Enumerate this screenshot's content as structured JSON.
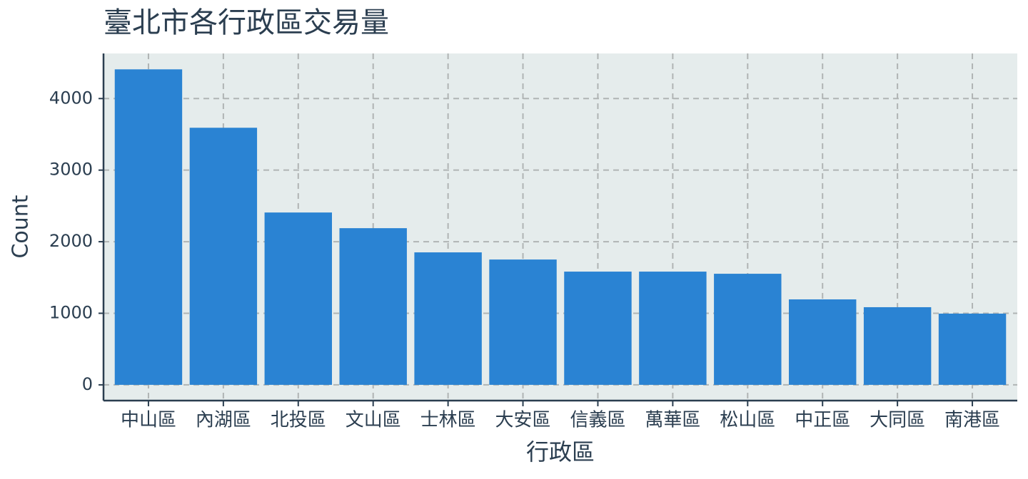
{
  "chart_data": {
    "type": "bar",
    "title": "臺北市各行政區交易量",
    "x_label": "行政區",
    "y_label": "Count",
    "categories": [
      "中山區",
      "內湖區",
      "北投區",
      "文山區",
      "士林區",
      "大安區",
      "信義區",
      "萬華區",
      "松山區",
      "中正區",
      "大同區",
      "南港區"
    ],
    "values": [
      4408,
      3592,
      2408,
      2189,
      1851,
      1751,
      1582,
      1582,
      1552,
      1194,
      1085,
      995
    ],
    "color": "#2a83d3",
    "ylim": [
      -220,
      4630
    ],
    "yticks": [
      0,
      1000,
      2000,
      3000,
      4000
    ],
    "grid": true
  }
}
